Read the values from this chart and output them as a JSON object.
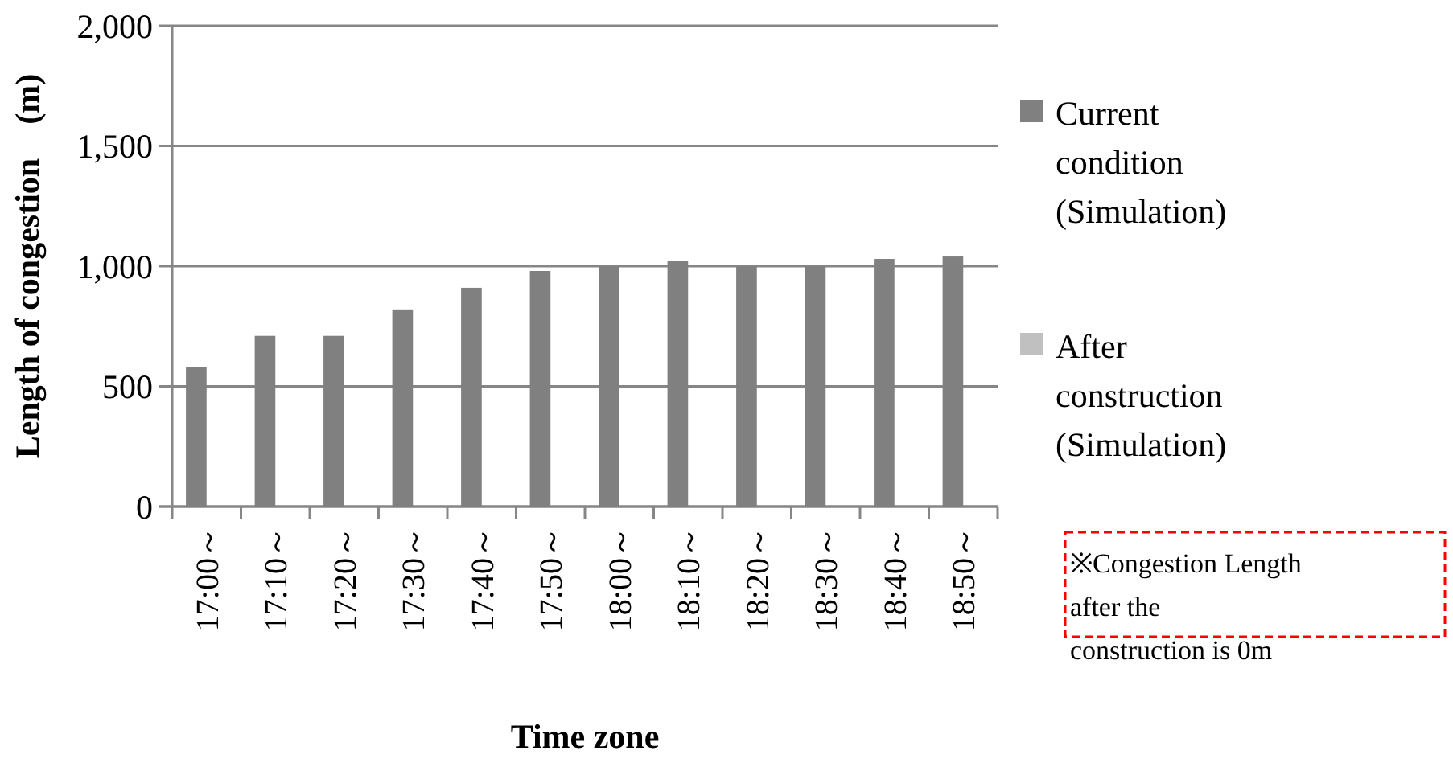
{
  "chart_data": {
    "type": "bar",
    "xlabel": "Time zone",
    "ylabel": "Length of congestion　(m)",
    "categories": [
      "17:00～",
      "17:10～",
      "17:20～",
      "17:30～",
      "17:40～",
      "17:50～",
      "18:00～",
      "18:10～",
      "18:20～",
      "18:30～",
      "18:40～",
      "18:50～"
    ],
    "series": [
      {
        "name": "Current condition (Simulation)",
        "color": "#808080",
        "values": [
          580,
          710,
          710,
          820,
          910,
          980,
          1000,
          1020,
          1000,
          1000,
          1030,
          1040
        ]
      },
      {
        "name": "After construction (Simulation)",
        "color": "#c0c0c0",
        "values": [
          0,
          0,
          0,
          0,
          0,
          0,
          0,
          0,
          0,
          0,
          0,
          0
        ]
      }
    ],
    "ylim": [
      0,
      2000
    ],
    "yticks": [
      {
        "value": 0,
        "label": "0"
      },
      {
        "value": 500,
        "label": "500"
      },
      {
        "value": 1000,
        "label": "1,000"
      },
      {
        "value": 1500,
        "label": "1,500"
      },
      {
        "value": 2000,
        "label": "2,000"
      }
    ],
    "grid": "y",
    "legend": "right",
    "annotations": [
      "※Congestion Length after the construction is 0m"
    ]
  }
}
